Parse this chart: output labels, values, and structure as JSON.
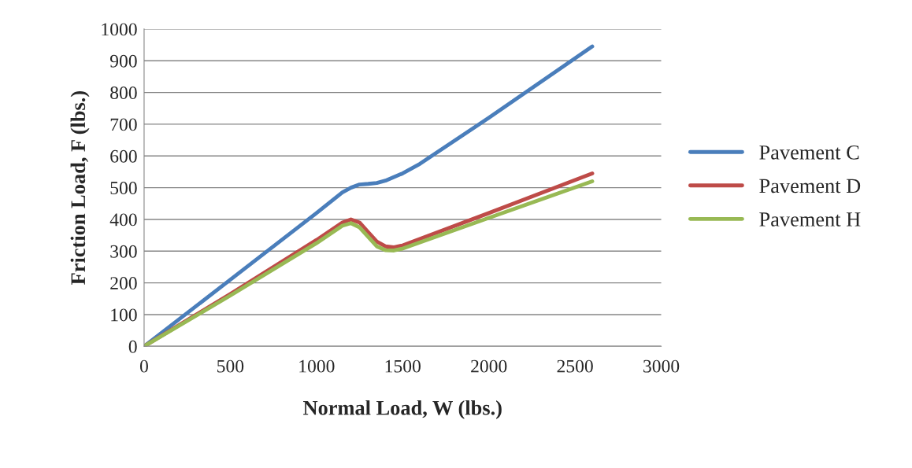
{
  "chart_data": {
    "type": "line",
    "xlabel": "Normal Load, W (lbs.)",
    "ylabel": "Friction Load, F (lbs.)",
    "xlim": [
      0,
      3000
    ],
    "xticks": [
      0,
      500,
      1000,
      1500,
      2000,
      2500,
      3000
    ],
    "ylim": [
      0,
      1000
    ],
    "yticks": [
      0,
      100,
      200,
      300,
      400,
      500,
      600,
      700,
      800,
      900,
      1000
    ],
    "grid": "y",
    "legend": "right",
    "marker": "none",
    "line_style": "solid",
    "series": [
      {
        "name": "Pavement C",
        "color": "#4a7ebb",
        "x": [
          0,
          500,
          1000,
          1150,
          1200,
          1250,
          1300,
          1350,
          1400,
          1500,
          1600,
          2000,
          2600
        ],
        "values": [
          0,
          210,
          420,
          485,
          500,
          510,
          512,
          515,
          522,
          545,
          575,
          720,
          945
        ]
      },
      {
        "name": "Pavement D",
        "color": "#be4b48",
        "x": [
          0,
          500,
          1000,
          1150,
          1200,
          1250,
          1300,
          1350,
          1400,
          1450,
          1500,
          2000,
          2600
        ],
        "values": [
          0,
          165,
          335,
          390,
          400,
          390,
          360,
          330,
          315,
          312,
          318,
          420,
          545
        ]
      },
      {
        "name": "Pavement H",
        "color": "#98b954",
        "x": [
          0,
          500,
          1000,
          1150,
          1200,
          1250,
          1300,
          1350,
          1400,
          1450,
          1500,
          2000,
          2600
        ],
        "values": [
          0,
          160,
          325,
          380,
          388,
          375,
          345,
          315,
          303,
          302,
          308,
          405,
          520
        ]
      }
    ]
  }
}
